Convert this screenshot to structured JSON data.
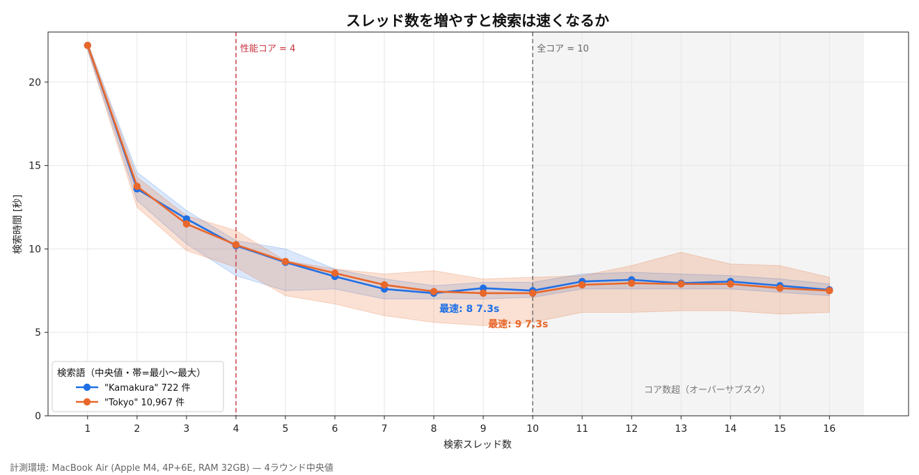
{
  "chart_data": {
    "type": "line",
    "title": "スレッド数を増やすと検索は速くなるか",
    "xlabel": "検索スレッド数",
    "ylabel": "検索時間 [秒]",
    "x": [
      1,
      2,
      3,
      4,
      5,
      6,
      7,
      8,
      9,
      10,
      11,
      12,
      13,
      14,
      15,
      16
    ],
    "xlim": [
      0.2,
      17.6
    ],
    "ylim": [
      0,
      23
    ],
    "yticks": [
      0,
      5,
      10,
      15,
      20
    ],
    "grid": true,
    "legend": {
      "title": "検索語（中央値・帯=最小〜最大）",
      "placement": "lower-left"
    },
    "series": [
      {
        "name": "\"Kamakura\"  722 件",
        "color": "#1f6fe5",
        "values": [
          22.2,
          13.6,
          11.8,
          10.2,
          9.2,
          8.35,
          7.6,
          7.35,
          7.65,
          7.5,
          8.05,
          8.15,
          7.95,
          8.05,
          7.8,
          7.55
        ],
        "min": [
          21.95,
          12.9,
          10.3,
          8.4,
          7.5,
          7.6,
          7.0,
          7.0,
          7.0,
          7.1,
          7.6,
          7.6,
          7.6,
          7.6,
          7.4,
          7.2
        ],
        "max": [
          22.35,
          14.6,
          12.3,
          10.5,
          10.0,
          8.8,
          8.2,
          7.8,
          8.0,
          8.0,
          8.5,
          8.6,
          8.5,
          8.4,
          8.2,
          7.9
        ]
      },
      {
        "name": "\"Tokyo\"  10,967 件",
        "color": "#e8672a",
        "values": [
          22.2,
          13.75,
          11.5,
          10.25,
          9.25,
          8.55,
          7.85,
          7.45,
          7.35,
          7.35,
          7.85,
          7.95,
          7.9,
          7.9,
          7.65,
          7.5
        ],
        "min": [
          21.9,
          12.5,
          9.9,
          8.9,
          7.2,
          6.7,
          6.0,
          5.6,
          5.4,
          5.6,
          6.2,
          6.2,
          6.3,
          6.3,
          6.1,
          6.2
        ],
        "max": [
          22.4,
          14.3,
          12.0,
          11.1,
          9.3,
          8.8,
          8.5,
          8.7,
          8.2,
          8.3,
          8.4,
          9.0,
          9.8,
          9.1,
          9.0,
          8.3
        ]
      }
    ],
    "vlines": [
      {
        "x": 4,
        "label": "性能コア = 4",
        "color": "#c8323c"
      },
      {
        "x": 10,
        "label": "全コア = 10",
        "color": "#666666"
      }
    ],
    "shaded_region": {
      "x0": 10,
      "x1": 16.7,
      "label": "コア数超（オーバーサブスク）"
    },
    "annotations": [
      {
        "text": "最速: 8  7.3s",
        "series": 0,
        "x": 8,
        "y": 7.3,
        "color": "#1f6fe5"
      },
      {
        "text": "最速: 9  7.3s",
        "series": 1,
        "x": 9,
        "y": 7.3,
        "color": "#e8672a"
      }
    ]
  },
  "footer": "計測環境: MacBook Air (Apple M4, 4P+6E, RAM 32GB) — 4ラウンド中央値"
}
